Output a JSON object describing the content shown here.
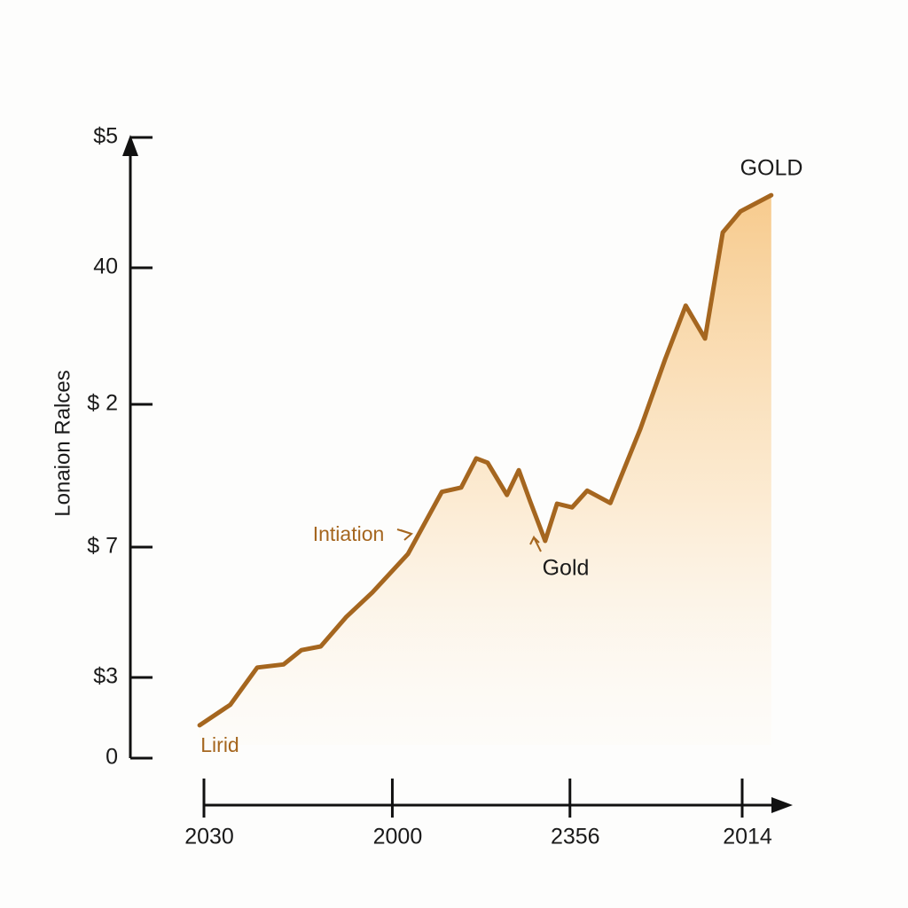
{
  "chart_data": {
    "type": "area",
    "y_label": "Lonaion Ralces",
    "x": [
      -0.8,
      4.9,
      9.9,
      14.8,
      18.1,
      21.7,
      26.4,
      31.3,
      37.9,
      44.2,
      47.8,
      50.6,
      52.7,
      56.3,
      58.5,
      60.6,
      63.4,
      65.6,
      68.4,
      71.2,
      75.5,
      81.1,
      85.7,
      89.5,
      93.1,
      96.4,
      99.7,
      105.4
    ],
    "values": [
      5.3,
      8.6,
      14.6,
      15.1,
      17.4,
      18.0,
      22.7,
      26.7,
      32.9,
      42.9,
      43.6,
      48.3,
      47.6,
      42.4,
      46.4,
      41.4,
      35.0,
      41.0,
      40.4,
      43.1,
      41.1,
      53.1,
      64.3,
      72.9,
      67.6,
      84.7,
      88.1,
      90.7
    ],
    "color": "#a5661f",
    "xlim": [
      -2,
      110
    ],
    "ylim": [
      0,
      100
    ],
    "xticks": [
      {
        "value": 0,
        "label": "2030"
      },
      {
        "value": 35,
        "label": "2000"
      },
      {
        "value": 68,
        "label": "2356"
      },
      {
        "value": 100,
        "label": "2014"
      }
    ],
    "yticks": [
      0,
      {
        "value": 13,
        "label": "$3"
      },
      {
        "value": 34,
        "label": "$ 7"
      },
      {
        "value": 57,
        "label": "$ 2"
      },
      {
        "value": 79,
        "label": "40"
      },
      {
        "value": 100,
        "label": "$5"
      }
    ],
    "annotations": [
      {
        "text": "GOLD"
      },
      {
        "text": "Intiation"
      },
      {
        "text": "Gold"
      },
      {
        "text": "Lirid"
      }
    ]
  }
}
